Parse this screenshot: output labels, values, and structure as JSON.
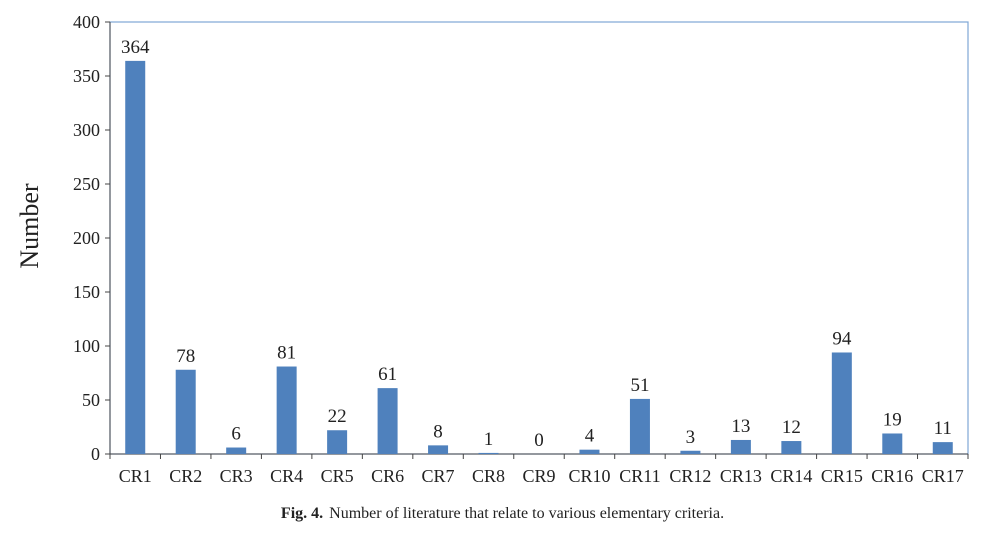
{
  "chart_data": {
    "type": "bar",
    "title": "",
    "xlabel": "",
    "ylabel": "Number",
    "ylim": [
      0,
      400
    ],
    "yticks": [
      0,
      50,
      100,
      150,
      200,
      250,
      300,
      350,
      400
    ],
    "grid": false,
    "categories": [
      "CR1",
      "CR2",
      "CR3",
      "CR4",
      "CR5",
      "CR6",
      "CR7",
      "CR8",
      "CR9",
      "CR10",
      "CR11",
      "CR12",
      "CR13",
      "CR14",
      "CR15",
      "CR16",
      "CR17"
    ],
    "values": [
      364,
      78,
      6,
      81,
      22,
      61,
      8,
      1,
      0,
      4,
      51,
      3,
      13,
      12,
      94,
      19,
      11
    ],
    "bar_color": "#4f81bd",
    "frame_color": "#7ea6d6"
  },
  "caption": {
    "label": "Fig. 4.",
    "text": "Number of literature that relate to various elementary criteria."
  }
}
